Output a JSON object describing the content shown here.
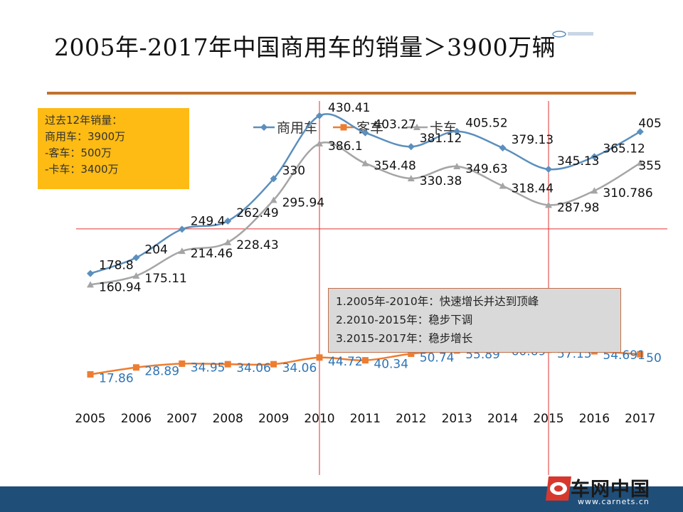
{
  "slide": {
    "title": "2005年-2017年中国商用车的销量＞3900万辆"
  },
  "summary_box": {
    "lines": [
      "过去12年销量：",
      "商用车：3900万",
      "-客车：500万",
      "-卡车：3400万"
    ],
    "background": "#fdbb13"
  },
  "phases_box": {
    "lines": [
      "1.2005年-2010年：快速增长并达到顶峰",
      "2.2010-2015年：稳步下调",
      "3.2015-2017年：稳步增长"
    ]
  },
  "brand": {
    "name": "车网中国",
    "url": "www.carnets.cn"
  },
  "chart_data": {
    "type": "line",
    "x": [
      "2005",
      "2006",
      "2007",
      "2008",
      "2009",
      "2010",
      "2011",
      "2012",
      "2013",
      "2014",
      "2015",
      "2016",
      "2017"
    ],
    "series": [
      {
        "name": "商用车",
        "color": "#5b8fbd",
        "marker": "diamond",
        "label_color": "#111111",
        "values": [
          178.8,
          204,
          249.4,
          262.49,
          330,
          430.41,
          403.27,
          381.12,
          405.52,
          379.13,
          345.13,
          365.12,
          405
        ],
        "labels": [
          "178.8",
          "204",
          "249.4",
          "262.49",
          "330",
          "430.41",
          "403.27",
          "381.12",
          "405.52",
          "379.13",
          "345.13",
          "365.12",
          "405"
        ]
      },
      {
        "name": "客车",
        "color": "#ed7d31",
        "marker": "square",
        "label_color": "#2e75b6",
        "values": [
          17.86,
          28.89,
          34.95,
          34.06,
          34.06,
          44.72,
          40.34,
          50.74,
          55.89,
          60.69,
          57.15,
          54.691,
          50
        ],
        "labels": [
          "17.86",
          "28.89",
          "34.95",
          "34.06",
          "34.06",
          "44.72",
          "40.34",
          "50.74",
          "55.89",
          "60.69",
          "57.15",
          "54.691",
          "50"
        ]
      },
      {
        "name": "卡车",
        "color": "#a5a5a5",
        "marker": "triangle",
        "label_color": "#111111",
        "values": [
          160.94,
          175.11,
          214.46,
          228.43,
          295.94,
          386.1,
          354.48,
          330.38,
          349.63,
          318.44,
          287.98,
          310.786,
          355
        ],
        "labels": [
          "160.94",
          "175.11",
          "214.46",
          "228.43",
          "295.94",
          "386.1",
          "354.48",
          "330.38",
          "349.63",
          "318.44",
          "287.98",
          "310.786",
          "355"
        ]
      }
    ],
    "reference_lines": {
      "vertical_at": [
        "2010",
        "2015"
      ],
      "horizontal_at_value": 250,
      "color": "#e03030"
    },
    "legend_position": "top",
    "grid": false,
    "ylim": [
      0,
      460
    ]
  }
}
